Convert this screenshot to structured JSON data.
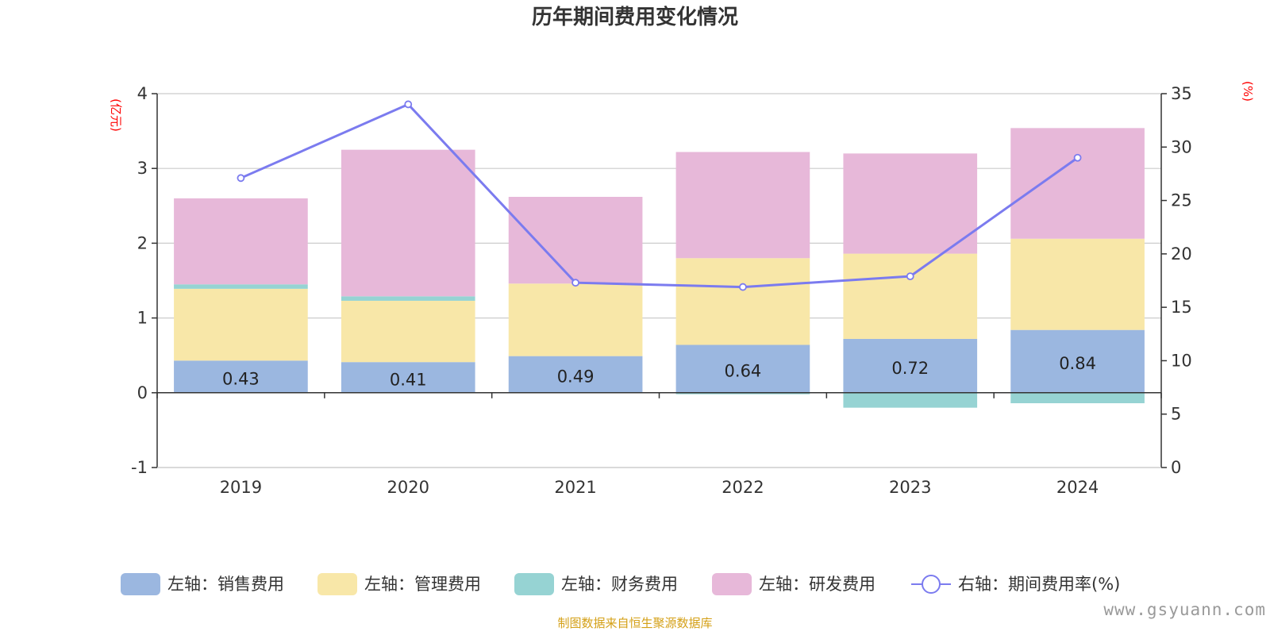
{
  "chart_data": {
    "type": "bar",
    "title": "历年期间费用变化情况",
    "categories": [
      "2019",
      "2020",
      "2021",
      "2022",
      "2023",
      "2024"
    ],
    "left_axis": {
      "unit": "(亿元)",
      "ylim": [
        -1,
        4
      ],
      "ticks": [
        -1,
        0,
        1,
        2,
        3,
        4
      ]
    },
    "right_axis": {
      "unit": "(%)",
      "ylim": [
        0,
        35
      ],
      "ticks": [
        0,
        5,
        10,
        15,
        20,
        25,
        30,
        35
      ]
    },
    "series": [
      {
        "name": "左轴：销售费用",
        "type": "bar",
        "stacked": true,
        "color": "#9bb7e0",
        "values": [
          0.43,
          0.41,
          0.49,
          0.64,
          0.72,
          0.84
        ],
        "show_labels": true
      },
      {
        "name": "左轴：管理费用",
        "type": "bar",
        "stacked": true,
        "color": "#f8e7a8",
        "values": [
          0.96,
          0.82,
          0.97,
          1.16,
          1.14,
          1.22
        ]
      },
      {
        "name": "左轴：财务费用",
        "type": "bar",
        "stacked": true,
        "color": "#96d3d3",
        "values": [
          0.06,
          0.06,
          0.0,
          -0.02,
          -0.2,
          -0.14
        ]
      },
      {
        "name": "左轴：研发费用",
        "type": "bar",
        "stacked": true,
        "color": "#e7b8d9",
        "values": [
          1.15,
          1.96,
          1.16,
          1.42,
          1.34,
          1.48
        ]
      },
      {
        "name": "右轴：期间费用率(%)",
        "type": "line",
        "axis": "right",
        "color": "#7b7bef",
        "values": [
          27.1,
          34.0,
          17.3,
          16.9,
          17.9,
          29.0
        ]
      }
    ],
    "grid": true,
    "legend_position": "bottom"
  },
  "source_text": "制图数据来自恒生聚源数据库",
  "watermark": "www.gsyuann.com"
}
